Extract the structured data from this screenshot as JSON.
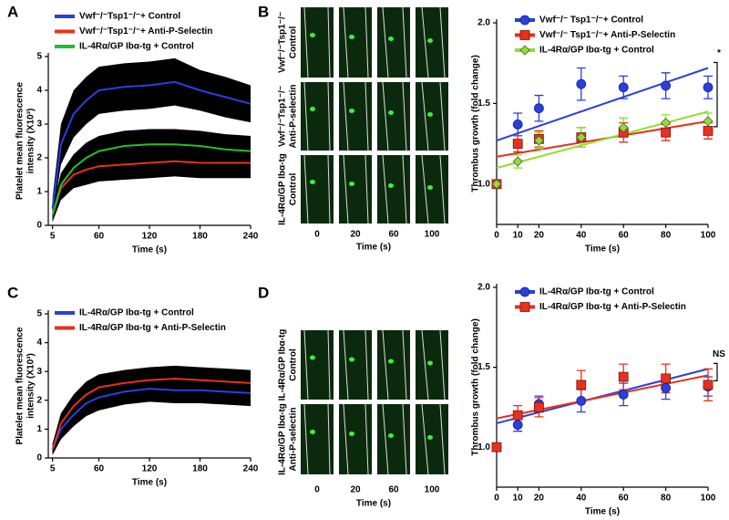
{
  "chart_data": [
    {
      "type": "line",
      "panel_label": "A",
      "ylabel": [
        "Platelet mean fluorescence",
        "intensity (X10³)"
      ],
      "xlabel": "Time (s)",
      "x": [
        5,
        15,
        30,
        45,
        60,
        90,
        120,
        150,
        180,
        210,
        240
      ],
      "xlim": [
        0,
        240
      ],
      "xticks": [
        5,
        60,
        120,
        180,
        240
      ],
      "ylim": [
        0,
        5
      ],
      "yticks": [
        0,
        1,
        2,
        3,
        4,
        5
      ],
      "band_color": "#000000",
      "series": [
        {
          "name": "Vwf⁻/⁻Tsp1⁻/⁻+ Control",
          "color": "#2a3fe0",
          "values": [
            0.5,
            2.4,
            3.3,
            3.7,
            4.0,
            4.1,
            4.15,
            4.25,
            4.0,
            3.8,
            3.6
          ],
          "errors": [
            0.3,
            0.6,
            0.7,
            0.7,
            0.7,
            0.7,
            0.7,
            0.7,
            0.6,
            0.6,
            0.55
          ]
        },
        {
          "name": "Vwf⁻/⁻Tsp1⁻/⁻+ Anti-P-Selectin",
          "color": "#e8301c",
          "values": [
            0.3,
            1.1,
            1.5,
            1.65,
            1.75,
            1.8,
            1.85,
            1.9,
            1.85,
            1.85,
            1.85
          ],
          "errors": [
            0.2,
            0.35,
            0.4,
            0.45,
            0.45,
            0.45,
            0.45,
            0.45,
            0.45,
            0.45,
            0.45
          ]
        },
        {
          "name": "IL-4Rα/GP Ibα-tg + Control",
          "color": "#22c02a",
          "values": [
            0.3,
            1.2,
            1.7,
            2.0,
            2.2,
            2.35,
            2.4,
            2.4,
            2.35,
            2.25,
            2.2
          ],
          "errors": [
            0.2,
            0.35,
            0.4,
            0.45,
            0.45,
            0.45,
            0.45,
            0.45,
            0.45,
            0.45,
            0.45
          ]
        }
      ]
    },
    {
      "type": "scatter",
      "panel_label": "B",
      "ylabel": "Thrombus growth  (fold change)",
      "xlabel": "Time (s)",
      "images": {
        "row_labels": [
          [
            "Vwf⁻/⁻Tsp1⁻/⁻",
            "Control"
          ],
          [
            "Vwf⁻/⁻Tsp1⁻/⁻",
            "Anti-P-selectin"
          ],
          [
            "IL-4Rα/GP Ibα-tg",
            "Control"
          ]
        ],
        "time_labels": [
          "0",
          "20",
          "60",
          "100"
        ],
        "xlabel": "Time (s)"
      },
      "x": [
        0,
        10,
        20,
        40,
        60,
        80,
        100
      ],
      "xlim": [
        0,
        100
      ],
      "xticks": [
        0,
        10,
        20,
        40,
        60,
        80,
        100
      ],
      "ylim": [
        0.75,
        2.0
      ],
      "yticks": [
        {
          "value": 1,
          "label": "1.0"
        },
        1.5,
        {
          "value": 2,
          "label": "2.0"
        }
      ],
      "annotation": "*",
      "series": [
        {
          "name": "Vwf⁻/⁻ Tsp1⁻/⁻+ Control",
          "color": "#2a3fe0",
          "marker": "circle",
          "values": [
            1.0,
            1.37,
            1.47,
            1.62,
            1.6,
            1.61,
            1.6
          ],
          "errors": [
            0.02,
            0.07,
            0.08,
            0.1,
            0.07,
            0.08,
            0.07
          ],
          "fit": [
            1.27,
            1.72
          ]
        },
        {
          "name": "Vwf⁻/⁻ Tsp1⁻/⁻+ Anti-P-Selectin",
          "color": "#e8301c",
          "marker": "square",
          "values": [
            1.0,
            1.25,
            1.28,
            1.29,
            1.32,
            1.32,
            1.33
          ],
          "errors": [
            0.02,
            0.05,
            0.05,
            0.06,
            0.06,
            0.05,
            0.05
          ],
          "fit": [
            1.17,
            1.39
          ]
        },
        {
          "name": "IL-4Rα/GP Ibα-tg + Control",
          "color": "#8ee02a",
          "marker": "diamond",
          "values": [
            1.0,
            1.14,
            1.27,
            1.29,
            1.35,
            1.38,
            1.39
          ],
          "errors": [
            0.02,
            0.04,
            0.05,
            0.06,
            0.06,
            0.05,
            0.05
          ],
          "fit": [
            1.1,
            1.45
          ]
        }
      ]
    },
    {
      "type": "line",
      "panel_label": "C",
      "ylabel": [
        "Platelet mean fluorescence",
        "intensity (X10³)"
      ],
      "xlabel": "Time (s)",
      "x": [
        5,
        15,
        30,
        45,
        60,
        90,
        120,
        150,
        180,
        210,
        240
      ],
      "xlim": [
        0,
        240
      ],
      "xticks": [
        5,
        60,
        120,
        180,
        240
      ],
      "ylim": [
        0,
        5
      ],
      "yticks": [
        0,
        1,
        2,
        3,
        4,
        5
      ],
      "band_color": "#000000",
      "series": [
        {
          "name": "IL-4Rα/GP Ibα-tg + Control",
          "color": "#2a3fe0",
          "values": [
            0.3,
            1.0,
            1.5,
            1.9,
            2.1,
            2.3,
            2.4,
            2.35,
            2.35,
            2.3,
            2.25
          ],
          "errors": [
            0.2,
            0.35,
            0.4,
            0.45,
            0.45,
            0.45,
            0.45,
            0.45,
            0.45,
            0.45,
            0.45
          ]
        },
        {
          "name": "IL-4Rα/GP Ibα-tg + Anti-P-Selectin",
          "color": "#e8301c",
          "values": [
            0.3,
            1.2,
            1.8,
            2.2,
            2.45,
            2.6,
            2.7,
            2.75,
            2.7,
            2.65,
            2.6
          ],
          "errors": [
            0.2,
            0.35,
            0.4,
            0.45,
            0.45,
            0.45,
            0.45,
            0.45,
            0.45,
            0.45,
            0.45
          ]
        }
      ]
    },
    {
      "type": "scatter",
      "panel_label": "D",
      "ylabel": "Thrombus growth  (fold change)",
      "xlabel": "Time (s)",
      "images": {
        "row_labels": [
          [
            "IL-4Rα/GP Ibα-tg",
            "Control"
          ],
          [
            "IL-4Rα/GP Ibα-tg",
            "Anti-P-selectin"
          ]
        ],
        "time_labels": [
          "0",
          "20",
          "60",
          "100"
        ],
        "xlabel": "Time (s)"
      },
      "x": [
        0,
        10,
        20,
        40,
        60,
        80,
        100
      ],
      "xlim": [
        0,
        100
      ],
      "xticks": [
        0,
        10,
        20,
        40,
        60,
        80,
        100
      ],
      "ylim": [
        0.75,
        2.0
      ],
      "yticks": [
        {
          "value": 1,
          "label": "1.0"
        },
        1.5,
        {
          "value": 2,
          "label": "2.0"
        }
      ],
      "annotation": "NS",
      "series": [
        {
          "name": "IL-4Rα/GP Ibα-tg + Control",
          "color": "#2a3fe0",
          "marker": "circle",
          "values": [
            1.0,
            1.14,
            1.27,
            1.29,
            1.33,
            1.37,
            1.38
          ],
          "errors": [
            0.02,
            0.04,
            0.05,
            0.07,
            0.07,
            0.07,
            0.06
          ],
          "fit": [
            1.15,
            1.49
          ]
        },
        {
          "name": "IL-4Rα/GP Ibα-tg + Anti-P-Selectin",
          "color": "#e8301c",
          "marker": "square",
          "values": [
            1.0,
            1.2,
            1.25,
            1.39,
            1.44,
            1.43,
            1.39
          ],
          "errors": [
            0.02,
            0.06,
            0.06,
            0.09,
            0.08,
            0.09,
            0.1
          ],
          "fit": [
            1.18,
            1.45
          ]
        }
      ]
    }
  ]
}
